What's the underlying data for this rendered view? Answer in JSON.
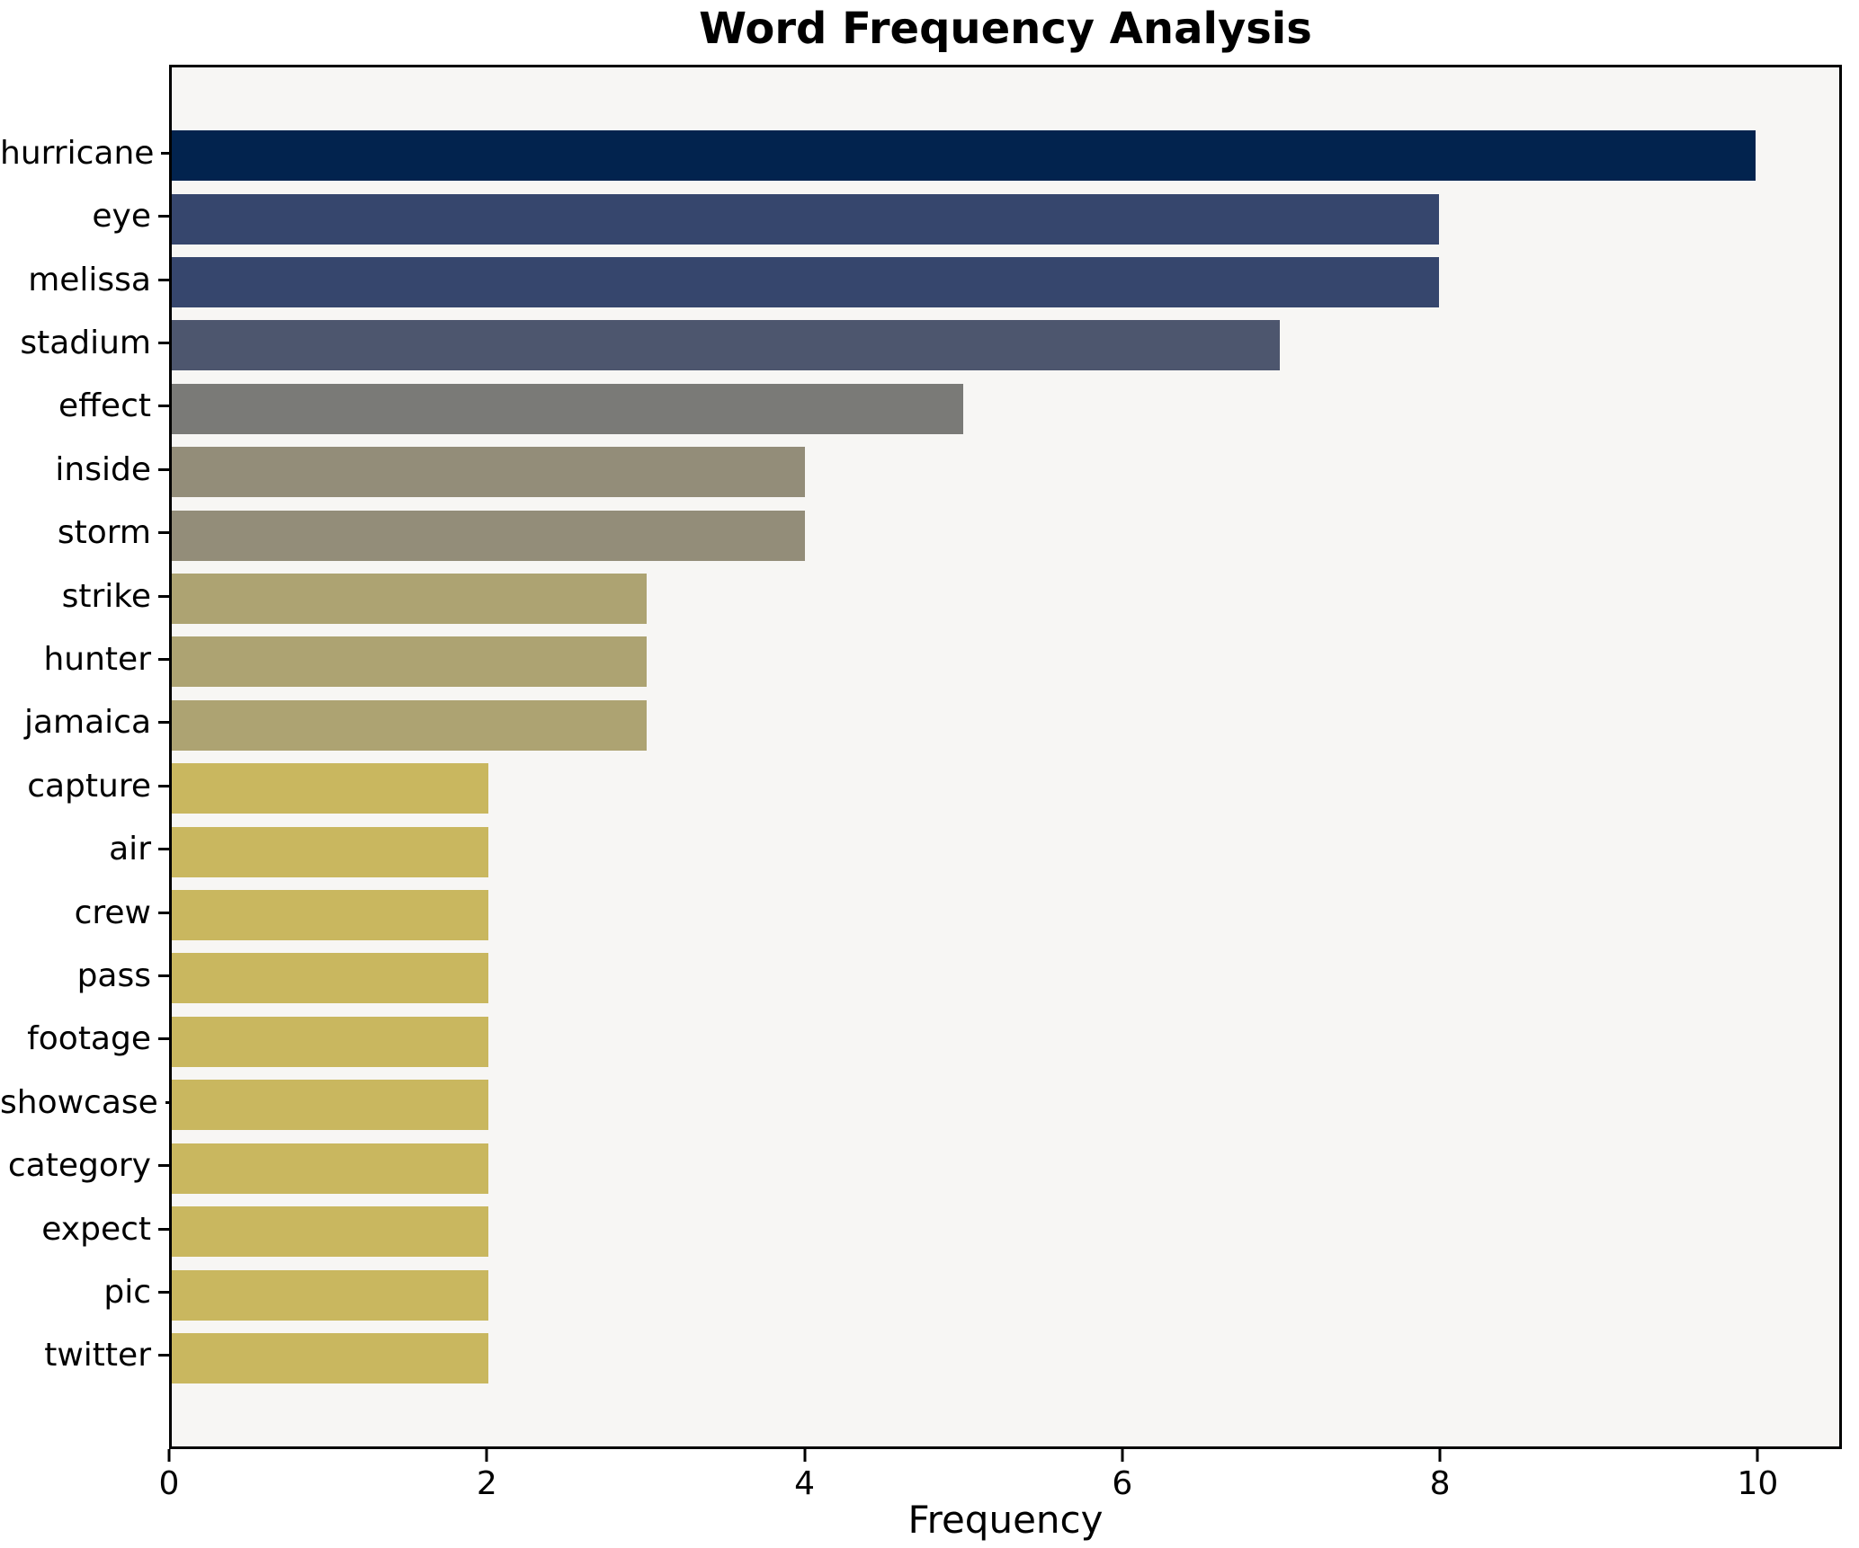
{
  "chart_data": {
    "type": "bar",
    "orientation": "horizontal",
    "title": "Word Frequency Analysis",
    "xlabel": "Frequency",
    "ylabel": "",
    "categories": [
      "hurricane",
      "eye",
      "melissa",
      "stadium",
      "effect",
      "inside",
      "storm",
      "strike",
      "hunter",
      "jamaica",
      "capture",
      "air",
      "crew",
      "pass",
      "footage",
      "showcase",
      "category",
      "expect",
      "pic",
      "twitter"
    ],
    "values": [
      10,
      8,
      8,
      7,
      5,
      4,
      4,
      3,
      3,
      3,
      2,
      2,
      2,
      2,
      2,
      2,
      2,
      2,
      2,
      2
    ],
    "bar_colors": [
      "#02234e",
      "#36466d",
      "#36466d",
      "#4d566e",
      "#7a7a77",
      "#938d79",
      "#938d79",
      "#ada372",
      "#ada372",
      "#ada372",
      "#c9b75f",
      "#c9b75f",
      "#c9b75f",
      "#c9b75f",
      "#c9b75f",
      "#c9b75f",
      "#c9b75f",
      "#c9b75f",
      "#c9b75f",
      "#c9b75f"
    ],
    "xticks": [
      0,
      2,
      4,
      6,
      8,
      10
    ],
    "xlim": [
      0,
      10.53
    ],
    "grid": false,
    "legend": null,
    "plot_background": "#f7f6f4",
    "figure_background": "#ffffff",
    "spine_color": "#000000"
  }
}
